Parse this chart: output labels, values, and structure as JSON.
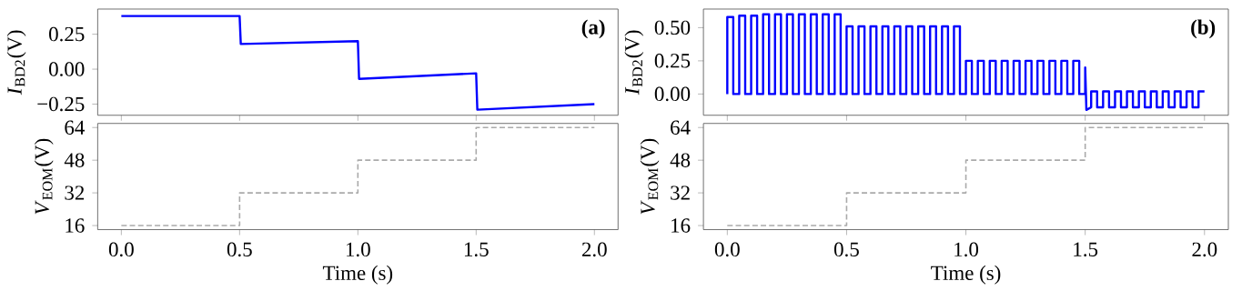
{
  "chart_data": [
    {
      "type": "line",
      "ylabel": "*I*$_{BD2}$(V)",
      "annotations": [
        "(a)"
      ],
      "tick_labels": "y",
      "xlim": [
        -0.1,
        2.1
      ],
      "ylim": [
        -0.33,
        0.43
      ],
      "xticks": [
        {
          "value": 0,
          "label": null
        },
        {
          "value": 0.5,
          "label": null
        },
        {
          "value": 1,
          "label": null
        },
        {
          "value": 1.5,
          "label": null
        },
        {
          "value": 2,
          "label": null
        }
      ],
      "yticks": [
        {
          "value": -0.25,
          "label": "−0.25"
        },
        {
          "value": 0,
          "label": "0.00"
        },
        {
          "value": 0.25,
          "label": "0.25"
        }
      ],
      "series": [
        {
          "color": "#0000ff",
          "x": [
            0,
            0.5,
            0.505,
            1.0,
            1.005,
            1.5,
            1.505,
            2.0
          ],
          "values": [
            0.38,
            0.38,
            0.18,
            0.2,
            -0.07,
            -0.03,
            -0.29,
            -0.25
          ]
        }
      ]
    },
    {
      "type": "line",
      "ylabel": "*I*$_{BD2}$(V)",
      "annotations": [
        "(b)"
      ],
      "tick_labels": "y",
      "xlim": [
        -0.1,
        2.1
      ],
      "ylim": [
        -0.16,
        0.64
      ],
      "xticks": [
        {
          "value": 0,
          "label": null
        },
        {
          "value": 0.5,
          "label": null
        },
        {
          "value": 1,
          "label": null
        },
        {
          "value": 1.5,
          "label": null
        },
        {
          "value": 2,
          "label": null
        }
      ],
      "yticks": [
        {
          "value": 0,
          "label": "0.00"
        },
        {
          "value": 0.25,
          "label": "0.25"
        },
        {
          "value": 0.5,
          "label": "0.50"
        }
      ],
      "series": [
        {
          "color": "#0000ff",
          "x": [
            0,
            0,
            0.025,
            0.025,
            0.05,
            0.05,
            0.075,
            0.075,
            0.1,
            0.1,
            0.125,
            0.125,
            0.15,
            0.15,
            0.175,
            0.175,
            0.2,
            0.2,
            0.225,
            0.225,
            0.25,
            0.25,
            0.275,
            0.275,
            0.3,
            0.3,
            0.325,
            0.325,
            0.35,
            0.35,
            0.375,
            0.375,
            0.4,
            0.4,
            0.425,
            0.425,
            0.45,
            0.45,
            0.475,
            0.475,
            0.5,
            0.5,
            0.525,
            0.525,
            0.55,
            0.55,
            0.575,
            0.575,
            0.6,
            0.6,
            0.625,
            0.625,
            0.65,
            0.65,
            0.675,
            0.675,
            0.7,
            0.7,
            0.725,
            0.725,
            0.75,
            0.75,
            0.775,
            0.775,
            0.8,
            0.8,
            0.825,
            0.825,
            0.85,
            0.85,
            0.875,
            0.875,
            0.9,
            0.9,
            0.925,
            0.925,
            0.95,
            0.95,
            0.975,
            0.975,
            1.0,
            1.0,
            1.025,
            1.025,
            1.05,
            1.05,
            1.075,
            1.075,
            1.1,
            1.1,
            1.125,
            1.125,
            1.15,
            1.15,
            1.175,
            1.175,
            1.2,
            1.2,
            1.225,
            1.225,
            1.25,
            1.25,
            1.275,
            1.275,
            1.3,
            1.3,
            1.325,
            1.325,
            1.35,
            1.35,
            1.375,
            1.375,
            1.4,
            1.4,
            1.425,
            1.425,
            1.45,
            1.45,
            1.475,
            1.475,
            1.5,
            1.5,
            1.505,
            1.525,
            1.525,
            1.55,
            1.55,
            1.575,
            1.575,
            1.6,
            1.6,
            1.625,
            1.625,
            1.65,
            1.65,
            1.675,
            1.675,
            1.7,
            1.7,
            1.725,
            1.725,
            1.75,
            1.75,
            1.775,
            1.775,
            1.8,
            1.8,
            1.825,
            1.825,
            1.85,
            1.85,
            1.875,
            1.875,
            1.9,
            1.9,
            1.925,
            1.925,
            1.95,
            1.95,
            1.975,
            1.975,
            2.0
          ],
          "values": [
            0,
            0.58,
            0.58,
            0,
            0,
            0.59,
            0.59,
            0,
            0,
            0.59,
            0.59,
            0,
            0,
            0.6,
            0.6,
            0,
            0,
            0.6,
            0.6,
            0,
            0,
            0.6,
            0.6,
            0,
            0,
            0.6,
            0.6,
            0,
            0,
            0.6,
            0.6,
            0,
            0,
            0.6,
            0.6,
            0,
            0,
            0.6,
            0.6,
            0,
            0,
            0.51,
            0.51,
            0,
            0,
            0.51,
            0.51,
            0,
            0,
            0.51,
            0.51,
            0,
            0,
            0.51,
            0.51,
            0,
            0,
            0.51,
            0.51,
            0,
            0,
            0.51,
            0.51,
            0,
            0,
            0.51,
            0.51,
            0,
            0,
            0.51,
            0.51,
            0,
            0,
            0.51,
            0.51,
            0,
            0,
            0.51,
            0.51,
            0,
            0,
            0.25,
            0.25,
            0,
            0,
            0.25,
            0.25,
            0,
            0,
            0.25,
            0.25,
            0,
            0,
            0.25,
            0.25,
            0,
            0,
            0.25,
            0.25,
            0,
            0,
            0.25,
            0.25,
            0,
            0,
            0.25,
            0.25,
            0,
            0,
            0.25,
            0.25,
            0,
            0,
            0.25,
            0.25,
            0,
            0,
            0.25,
            0.25,
            0,
            0,
            0.2,
            -0.12,
            -0.1,
            0.02,
            0.02,
            -0.1,
            -0.1,
            0.02,
            0.02,
            -0.1,
            -0.1,
            0.02,
            0.02,
            -0.1,
            -0.1,
            0.02,
            0.02,
            -0.1,
            -0.1,
            0.02,
            0.02,
            -0.1,
            -0.1,
            0.02,
            0.02,
            -0.1,
            -0.1,
            0.02,
            0.02,
            -0.1,
            -0.1,
            0.02,
            0.02,
            -0.1,
            -0.1,
            0.02,
            0.02,
            -0.1,
            -0.1,
            0.02,
            0.02
          ]
        }
      ]
    },
    {
      "type": "step",
      "ylabel": "*V*$_{EOM}$(V)",
      "xlabel": "Time (s)",
      "line_style": "dashed",
      "xlim": [
        -0.1,
        2.1
      ],
      "ylim": [
        14,
        66
      ],
      "xticks": [
        {
          "value": 0,
          "label": "0.0"
        },
        {
          "value": 0.5,
          "label": "0.5"
        },
        {
          "value": 1,
          "label": "1.0"
        },
        {
          "value": 1.5,
          "label": "1.5"
        },
        {
          "value": 2,
          "label": "2.0"
        }
      ],
      "yticks": [
        16,
        32,
        48,
        64
      ],
      "series": [
        {
          "color": "#aaaaaa",
          "x": [
            0,
            0.5,
            1.0,
            1.5,
            2.0
          ],
          "values": [
            16,
            32,
            48,
            64,
            64
          ]
        }
      ]
    },
    {
      "type": "step",
      "ylabel": "*V*$_{EOM}$(V)",
      "xlabel": "Time (s)",
      "line_style": "dashed",
      "xlim": [
        -0.1,
        2.1
      ],
      "ylim": [
        14,
        66
      ],
      "xticks": [
        {
          "value": 0,
          "label": "0.0"
        },
        {
          "value": 0.5,
          "label": "0.5"
        },
        {
          "value": 1,
          "label": "1.0"
        },
        {
          "value": 1.5,
          "label": "1.5"
        },
        {
          "value": 2,
          "label": "2.0"
        }
      ],
      "yticks": [
        16,
        32,
        48,
        64
      ],
      "series": [
        {
          "color": "#aaaaaa",
          "x": [
            0,
            0.5,
            1.0,
            1.5,
            2.0
          ],
          "values": [
            16,
            32,
            48,
            64,
            64
          ]
        }
      ]
    }
  ]
}
